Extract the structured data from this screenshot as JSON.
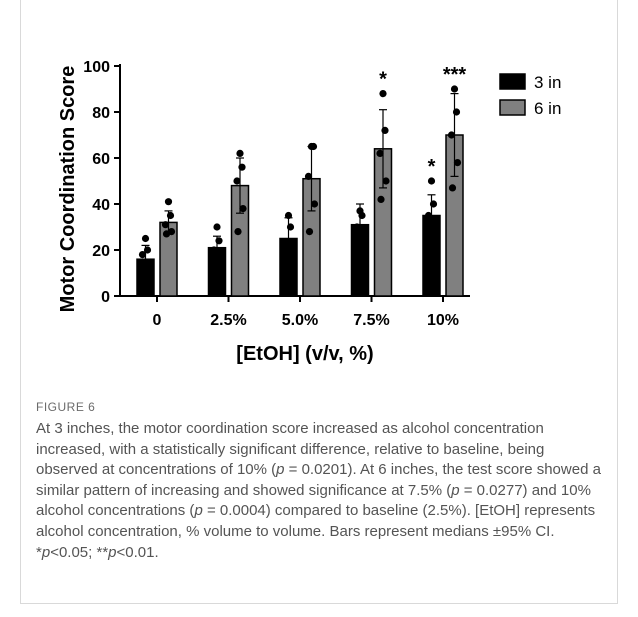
{
  "chart_data": {
    "type": "bar",
    "xlabel": "[EtOH] (v/v, %)",
    "ylabel": "Motor Coordination Score",
    "ylim": [
      0,
      100
    ],
    "yticks": [
      0,
      20,
      40,
      60,
      80,
      100
    ],
    "categories": [
      "0",
      "2.5%",
      "5.0%",
      "7.5%",
      "10%"
    ],
    "legend_position": "top-right",
    "series": [
      {
        "name": "3 in",
        "color": "#000000",
        "values": [
          16,
          21,
          25,
          31,
          35
        ],
        "error_low": [
          11,
          16,
          19,
          25,
          30
        ],
        "error_high": [
          22,
          26,
          34,
          40,
          44
        ],
        "points": [
          [
            5,
            12,
            18,
            20,
            25
          ],
          [
            14,
            18,
            20,
            24,
            30
          ],
          [
            8,
            18,
            22,
            30,
            35
          ],
          [
            10,
            20,
            30,
            35,
            37
          ],
          [
            25,
            30,
            35,
            40,
            50
          ]
        ]
      },
      {
        "name": "6 in",
        "color": "#808080",
        "values": [
          32,
          48,
          51,
          64,
          70
        ],
        "error_low": [
          28,
          36,
          37,
          47,
          52
        ],
        "error_high": [
          37,
          60,
          65,
          81,
          88
        ],
        "points": [
          [
            27,
            28,
            31,
            35,
            41
          ],
          [
            28,
            38,
            50,
            56,
            62
          ],
          [
            28,
            40,
            52,
            65,
            65
          ],
          [
            42,
            50,
            62,
            72,
            88
          ],
          [
            47,
            58,
            70,
            80,
            90
          ]
        ]
      }
    ],
    "annotations": [
      {
        "category": "7.5%",
        "series": "6 in",
        "text": "*"
      },
      {
        "category": "10%",
        "series": "3 in",
        "text": "*"
      },
      {
        "category": "10%",
        "series": "6 in",
        "text": "***"
      }
    ]
  },
  "figure": {
    "label": "FIGURE 6",
    "caption_parts": [
      {
        "t": "At 3 inches, the motor coordination score increased as alcohol concentration increased, with a statistically significant difference, relative to baseline, being observed at concentrations of 10% (",
        "i": false
      },
      {
        "t": "p",
        "i": true
      },
      {
        "t": " = 0.0201). At 6 inches, the test score showed a similar pattern of increasing and showed significance at 7.5% (",
        "i": false
      },
      {
        "t": "p",
        "i": true
      },
      {
        "t": " = 0.0277) and 10% alcohol concentrations (",
        "i": false
      },
      {
        "t": "p",
        "i": true
      },
      {
        "t": " = 0.0004) compared to baseline (2.5%). [EtOH] represents alcohol concentration, % volume to volume. Bars represent medians ±95% CI. *",
        "i": false
      },
      {
        "t": "p",
        "i": true
      },
      {
        "t": "<0.05; **",
        "i": false
      },
      {
        "t": "p",
        "i": true
      },
      {
        "t": "<0.01.",
        "i": false
      }
    ]
  }
}
